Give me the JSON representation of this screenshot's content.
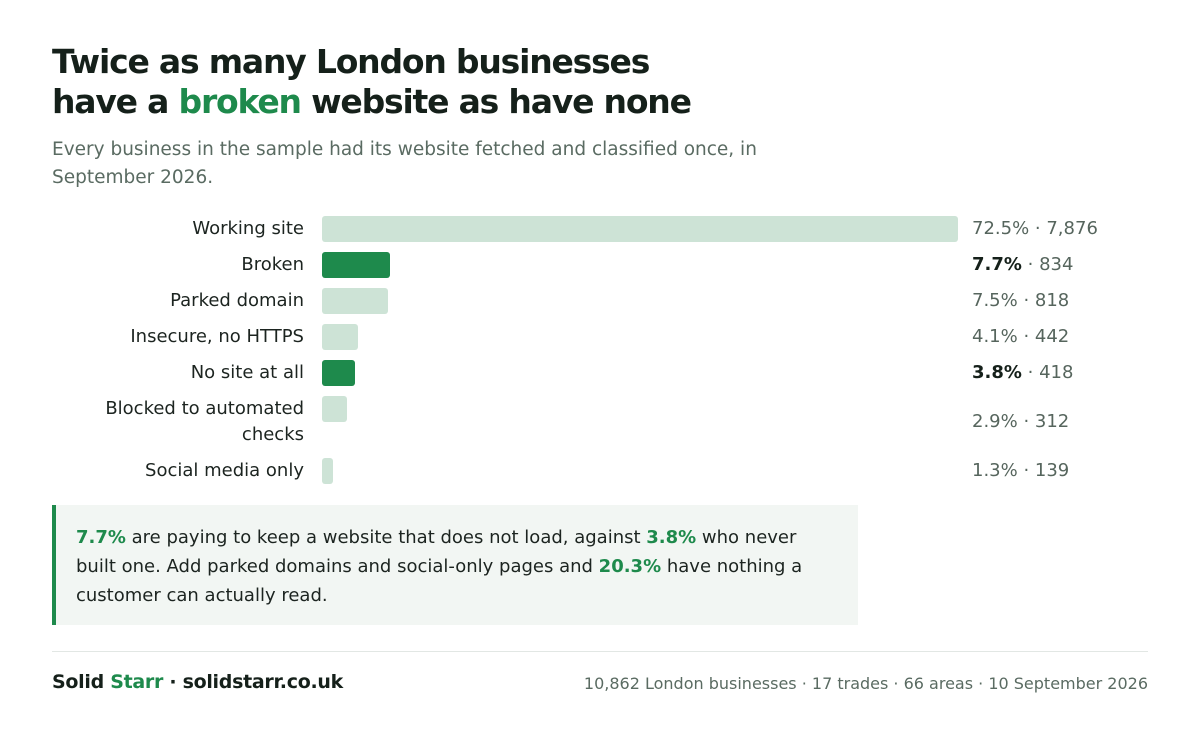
{
  "title": {
    "line1": "Twice as many London businesses",
    "line2_pre": "have a ",
    "line2_accent": "broken",
    "line2_post": " website as have none"
  },
  "subtitle": "Every business in the sample had its website fetched and classified once, in September 2026.",
  "chart_data": {
    "type": "bar",
    "orientation": "horizontal",
    "categories": [
      "Working site",
      "Broken",
      "Parked domain",
      "Insecure, no HTTPS",
      "No site at all",
      "Blocked to automated checks",
      "Social media only"
    ],
    "values": [
      72.5,
      7.7,
      7.5,
      4.1,
      3.8,
      2.9,
      1.3
    ],
    "counts": [
      7876,
      834,
      818,
      442,
      418,
      312,
      139
    ],
    "count_labels": [
      "7,876",
      "834",
      "818",
      "442",
      "418",
      "312",
      "139"
    ],
    "highlighted": [
      "Broken",
      "No site at all"
    ],
    "unit": "%",
    "xlim": [
      0,
      72.5
    ],
    "colors": {
      "base": "#cde3d6",
      "highlight": "#1e8a4c"
    }
  },
  "callout": {
    "v1": "7.7%",
    "t1": " are paying to keep a website that does not load, against ",
    "v2": "3.8%",
    "t2": " who never built one. Add parked domains and social-only pages and ",
    "v3": "20.3%",
    "t3": " have nothing a customer can actually read."
  },
  "footer": {
    "brand_a": "Solid ",
    "brand_b": "Starr",
    "brand_c": " · solidstarr.co.uk",
    "meta": "10,862 London businesses · 17 trades · 66 areas · 10 September 2026"
  },
  "colors": {
    "accent": "#1e8a4c",
    "text": "#15201a",
    "muted": "#5a6b62"
  }
}
